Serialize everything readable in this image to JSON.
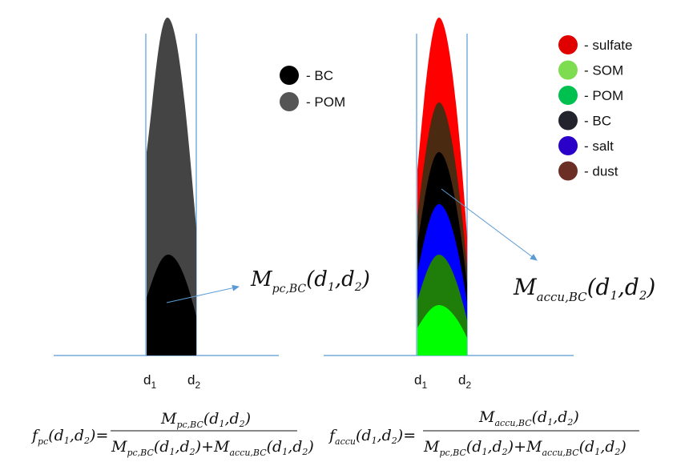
{
  "left_panel": {
    "legend": [
      {
        "label": "- BC",
        "color": "#000000"
      },
      {
        "label": "- POM",
        "color": "#555555"
      }
    ],
    "d1_label": "d",
    "d1_sub": "1",
    "d2_label": "d",
    "d2_sub": "2",
    "annotation": {
      "main": "M",
      "sub": "pc,BC",
      "args_open": "(d",
      "a1": "1",
      "comma": ",d",
      "a2": "2",
      "close": ")"
    }
  },
  "right_panel": {
    "legend": [
      {
        "label": "- sulfate",
        "color": "#e00000"
      },
      {
        "label": "- SOM",
        "color": "#7ddc4f"
      },
      {
        "label": "- POM",
        "color": "#00c050"
      },
      {
        "label": "- BC",
        "color": "#23232e"
      },
      {
        "label": "- salt",
        "color": "#2a00c8"
      },
      {
        "label": "- dust",
        "color": "#6b2f25"
      }
    ],
    "layer_colors": [
      "#ff0000",
      "#4a2a10",
      "#000000",
      "#0000ff",
      "#1f7d0a",
      "#00ff00"
    ],
    "d1_label": "d",
    "d1_sub": "1",
    "d2_label": "d",
    "d2_sub": "2",
    "annotation": {
      "main": "M",
      "sub": "accu,BC",
      "args_open": "(d",
      "a1": "1",
      "comma": ",d",
      "a2": "2",
      "close": ")"
    }
  },
  "equations": {
    "left": {
      "lhs_f": "f",
      "lhs_sub": "pc",
      "lhs_args": "(d",
      "lhs_1": "1",
      "lhs_c": ",d",
      "lhs_2": "2",
      "lhs_close": ")=",
      "num": "M",
      "num_sub": "pc,BC",
      "num_args": "(d",
      "num_1": "1",
      "num_c": ",d",
      "num_2": "2",
      "num_close": ")",
      "den1": "M",
      "den1_sub": "pc,BC",
      "den1_args": "(d",
      "den1_1": "1",
      "den1_c": ",d",
      "den1_2": "2",
      "den1_close": ")+",
      "den2": "M",
      "den2_sub": "accu,BC",
      "den2_args": "(d",
      "den2_1": "1",
      "den2_c": ",d",
      "den2_2": "2",
      "den2_close": ")"
    },
    "right": {
      "lhs_f": "f",
      "lhs_sub": "accu",
      "lhs_args": "(d",
      "lhs_1": "1",
      "lhs_c": ",d",
      "lhs_2": "2",
      "lhs_close": ")=",
      "num": "M",
      "num_sub": "accu,BC",
      "num_args": "(d",
      "num_1": "1",
      "num_c": ",d",
      "num_2": "2",
      "num_close": ")",
      "den1": "M",
      "den1_sub": "pc,BC",
      "den1_args": "(d",
      "den1_1": "1",
      "den1_c": ",d",
      "den1_2": "2",
      "den1_close": ")+",
      "den2": "M",
      "den2_sub": "accu,BC",
      "den2_args": "(d",
      "den2_1": "1",
      "den2_c": ",d",
      "den2_2": "2",
      "den2_close": ")"
    }
  },
  "colors": {
    "axis": "#5b9bd5",
    "arrow": "#5b9bd5",
    "bc": "#000000",
    "pom": "#444444"
  }
}
